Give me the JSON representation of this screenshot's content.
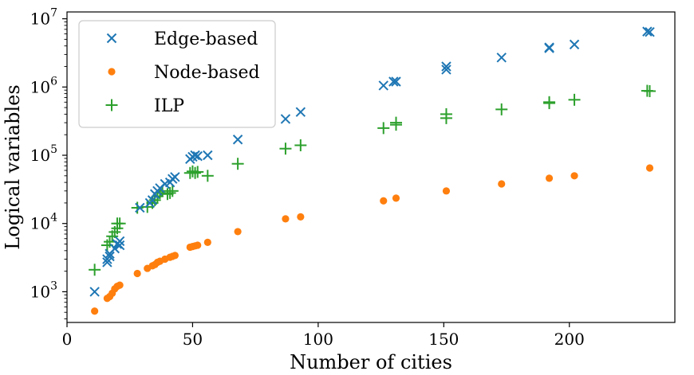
{
  "chart_data": {
    "type": "scatter",
    "title": "",
    "xlabel": "Number of cities",
    "ylabel": "Logical variables",
    "xlim": [
      0,
      242
    ],
    "ylim_log10": [
      2.55,
      7.1
    ],
    "y_scale": "log",
    "grid": false,
    "legend_position": "top-left",
    "x_ticks": [
      0,
      50,
      100,
      150,
      200
    ],
    "x_tick_labels": [
      "0",
      "50",
      "100",
      "150",
      "200"
    ],
    "y_ticks_log10": [
      3,
      4,
      5,
      6,
      7
    ],
    "y_tick_labels": [
      {
        "base": "10",
        "exp": "3"
      },
      {
        "base": "10",
        "exp": "4"
      },
      {
        "base": "10",
        "exp": "5"
      },
      {
        "base": "10",
        "exp": "6"
      },
      {
        "base": "10",
        "exp": "7"
      }
    ],
    "series": [
      {
        "name": "Edge-based",
        "marker": "x",
        "color": "#1f77b4",
        "points": [
          [
            11,
            1000
          ],
          [
            16,
            2700
          ],
          [
            16,
            3000
          ],
          [
            17,
            3300
          ],
          [
            17,
            3600
          ],
          [
            19,
            4300
          ],
          [
            20,
            5000
          ],
          [
            21,
            4800
          ],
          [
            21,
            5500
          ],
          [
            29,
            17000
          ],
          [
            33,
            20000
          ],
          [
            34,
            22000
          ],
          [
            35,
            27000
          ],
          [
            36,
            30000
          ],
          [
            37,
            33000
          ],
          [
            39,
            38000
          ],
          [
            41,
            40000
          ],
          [
            42,
            45000
          ],
          [
            43,
            48000
          ],
          [
            49,
            88000
          ],
          [
            50,
            95000
          ],
          [
            51,
            100000
          ],
          [
            52,
            97000
          ],
          [
            56,
            100000
          ],
          [
            68,
            170000
          ],
          [
            87,
            340000
          ],
          [
            93,
            430000
          ],
          [
            126,
            1050000
          ],
          [
            130,
            1200000
          ],
          [
            131,
            1200000
          ],
          [
            151,
            1800000
          ],
          [
            151,
            2000000
          ],
          [
            173,
            2700000
          ],
          [
            192,
            3800000
          ],
          [
            192,
            3700000
          ],
          [
            202,
            4200000
          ],
          [
            231,
            6500000
          ],
          [
            232,
            6400000
          ]
        ]
      },
      {
        "name": "Node-based",
        "marker": "o",
        "color": "#ff7f0e",
        "points": [
          [
            11,
            520
          ],
          [
            16,
            800
          ],
          [
            17,
            850
          ],
          [
            18,
            950
          ],
          [
            19,
            1100
          ],
          [
            20,
            1200
          ],
          [
            21,
            1250
          ],
          [
            28,
            1850
          ],
          [
            32,
            2200
          ],
          [
            34,
            2400
          ],
          [
            35,
            2500
          ],
          [
            36,
            2700
          ],
          [
            37,
            2800
          ],
          [
            39,
            3000
          ],
          [
            41,
            3200
          ],
          [
            42,
            3300
          ],
          [
            43,
            3400
          ],
          [
            49,
            4500
          ],
          [
            50,
            4600
          ],
          [
            51,
            4700
          ],
          [
            52,
            4800
          ],
          [
            56,
            5300
          ],
          [
            68,
            7600
          ],
          [
            87,
            11700
          ],
          [
            93,
            12500
          ],
          [
            126,
            21500
          ],
          [
            131,
            23500
          ],
          [
            151,
            30000
          ],
          [
            173,
            38000
          ],
          [
            192,
            46000
          ],
          [
            202,
            50000
          ],
          [
            232,
            65000
          ]
        ]
      },
      {
        "name": "ILP",
        "marker": "+",
        "color": "#2ca02c",
        "points": [
          [
            11,
            2100
          ],
          [
            16,
            4800
          ],
          [
            17,
            5400
          ],
          [
            18,
            6500
          ],
          [
            19,
            7500
          ],
          [
            20,
            8500
          ],
          [
            20,
            10000
          ],
          [
            21,
            10000
          ],
          [
            28,
            17000
          ],
          [
            32,
            17500
          ],
          [
            34,
            20000
          ],
          [
            35,
            22000
          ],
          [
            36,
            25000
          ],
          [
            37,
            28000
          ],
          [
            38,
            30000
          ],
          [
            40,
            27000
          ],
          [
            41,
            28000
          ],
          [
            42,
            30000
          ],
          [
            49,
            55000
          ],
          [
            50,
            58000
          ],
          [
            51,
            55000
          ],
          [
            52,
            57000
          ],
          [
            56,
            50000
          ],
          [
            68,
            75000
          ],
          [
            87,
            125000
          ],
          [
            93,
            140000
          ],
          [
            126,
            250000
          ],
          [
            131,
            280000
          ],
          [
            131,
            300000
          ],
          [
            151,
            350000
          ],
          [
            151,
            400000
          ],
          [
            173,
            470000
          ],
          [
            192,
            600000
          ],
          [
            192,
            580000
          ],
          [
            202,
            650000
          ],
          [
            231,
            880000
          ],
          [
            232,
            870000
          ]
        ]
      }
    ]
  }
}
